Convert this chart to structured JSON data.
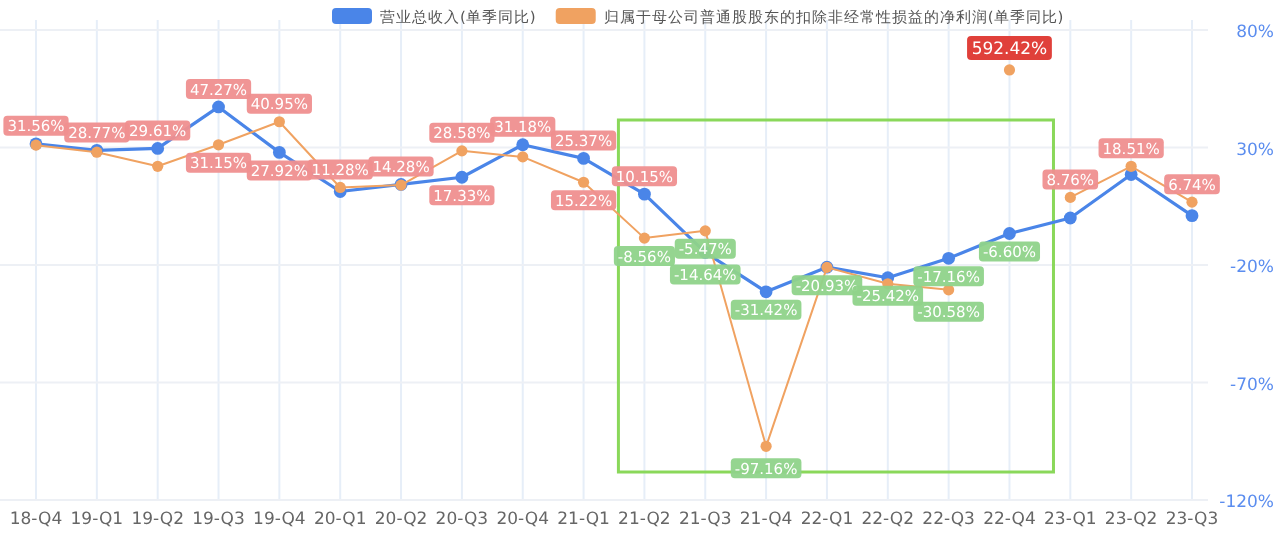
{
  "chart_data": {
    "type": "line",
    "categories": [
      "18-Q4",
      "19-Q1",
      "19-Q2",
      "19-Q3",
      "19-Q4",
      "20-Q1",
      "20-Q2",
      "20-Q3",
      "20-Q4",
      "21-Q1",
      "21-Q2",
      "21-Q3",
      "21-Q4",
      "22-Q1",
      "22-Q2",
      "22-Q3",
      "22-Q4",
      "23-Q1",
      "23-Q2",
      "23-Q3"
    ],
    "series": [
      {
        "name": "营业总收入(单季同比)",
        "color": "#4a85e8",
        "values": [
          31.56,
          28.77,
          29.61,
          47.27,
          27.92,
          11.28,
          14.28,
          17.33,
          31.18,
          25.37,
          10.15,
          -14.64,
          -31.42,
          -20.93,
          -25.42,
          -17.16,
          -6.6,
          0,
          18.51,
          1
        ],
        "value_labels": [
          "31.56%",
          "28.77%",
          "29.61%",
          "47.27%",
          "27.92%",
          "11.28%",
          "14.28%",
          "17.33%",
          "31.18%",
          "25.37%",
          "10.15%",
          "-14.64%",
          "-31.42%",
          "-20.93%",
          "-25.42%",
          "-17.16%",
          "-6.60%",
          null,
          "18.51%",
          null
        ]
      },
      {
        "name": "归属于母公司普通股股东的扣除非经常性损益的净利润(单季同比)",
        "color": "#f0a261",
        "values": [
          31,
          28,
          22,
          31.15,
          40.95,
          13,
          14,
          28.58,
          26,
          15.22,
          -8.56,
          -5.47,
          -97.16,
          -21,
          -28,
          -30.58,
          null,
          8.76,
          22,
          6.74
        ],
        "value_labels": [
          null,
          null,
          null,
          "31.15%",
          "40.95%",
          null,
          null,
          "28.58%",
          null,
          "15.22%",
          "-8.56%",
          "-5.47%",
          "-97.16%",
          null,
          null,
          "-30.58%",
          null,
          "8.76%",
          null,
          "6.74%"
        ]
      }
    ],
    "ylim": [
      -120,
      80
    ],
    "yticks": [
      {
        "value": 80,
        "label": "80%"
      },
      {
        "value": 30,
        "label": "30%"
      },
      {
        "value": -20,
        "label": "-20%"
      },
      {
        "value": -70,
        "label": "-70%"
      },
      {
        "value": -120,
        "label": "-120%"
      }
    ],
    "grid": true,
    "legend": "top",
    "marker": "circle",
    "line_style": "solid",
    "annotations": [
      {
        "text": "592.42%",
        "x": "22-Q4",
        "y": 63
      }
    ]
  }
}
